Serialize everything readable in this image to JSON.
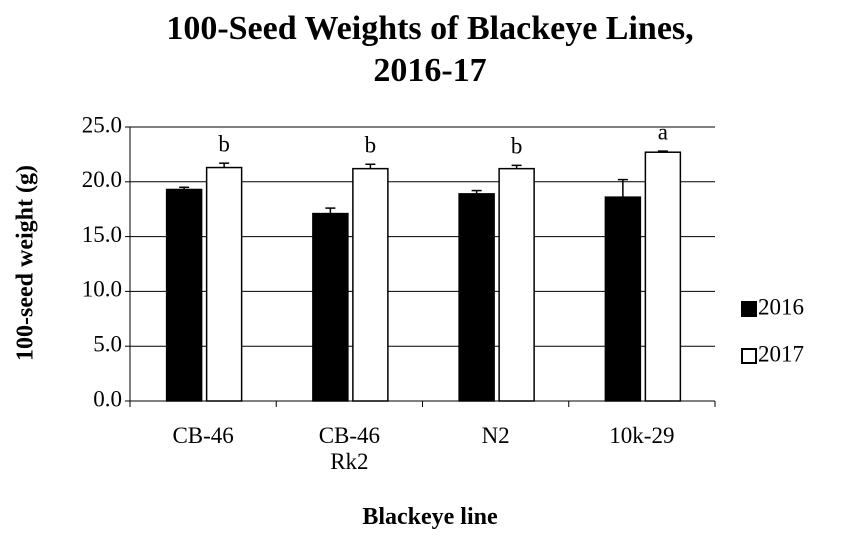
{
  "chart_data": {
    "type": "bar",
    "title": "100-Seed Weights of Blackeye Lines,\n2016-17",
    "xlabel": "Blackeye line",
    "ylabel": "100-seed weight (g)",
    "categories": [
      "CB-46",
      "CB-46\nRk2",
      "N2",
      "10k-29"
    ],
    "series": [
      {
        "name": "2016",
        "color": "#000000",
        "values": [
          19.3,
          17.1,
          18.9,
          18.6
        ],
        "errors": [
          0.2,
          0.5,
          0.3,
          1.6
        ]
      },
      {
        "name": "2017",
        "color": "#ffffff",
        "values": [
          21.3,
          21.2,
          21.2,
          22.7
        ],
        "errors": [
          0.4,
          0.4,
          0.3,
          0.1
        ]
      }
    ],
    "annotations": [
      "b",
      "b",
      "b",
      "a"
    ],
    "ylim": [
      0,
      25
    ],
    "yticks": [
      {
        "value": 0,
        "label": "0.0"
      },
      {
        "value": 5,
        "label": "5.0"
      },
      {
        "value": 10,
        "label": "10.0"
      },
      {
        "value": 15,
        "label": "15.0"
      },
      {
        "value": 20,
        "label": "20.0"
      },
      {
        "value": 25,
        "label": "25.0"
      }
    ],
    "grid": true,
    "legend": "right"
  }
}
